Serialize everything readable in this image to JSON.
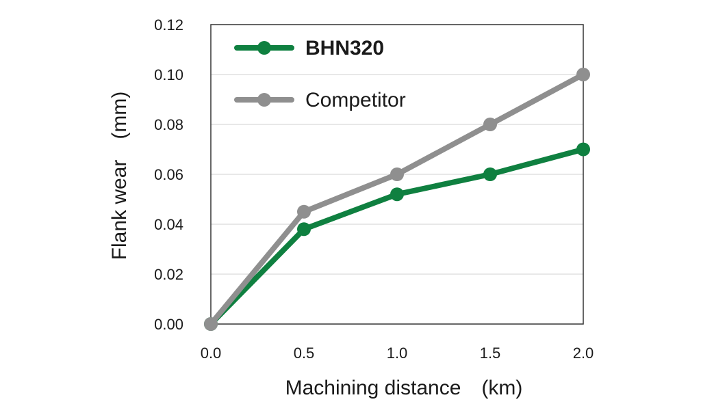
{
  "chart_data": {
    "type": "line",
    "xlabel": "Machining distance　(km)",
    "ylabel": "Flank wear　(mm)",
    "x": [
      0.0,
      0.5,
      1.0,
      1.5,
      2.0
    ],
    "x_tick_labels": [
      "0.0",
      "0.5",
      "1.0",
      "1.5",
      "2.0"
    ],
    "xlim": [
      0.0,
      2.0
    ],
    "ylim": [
      0.0,
      0.12
    ],
    "y_ticks": [
      0.0,
      0.02,
      0.04,
      0.06,
      0.08,
      0.1,
      0.12
    ],
    "y_tick_labels": [
      "0.00",
      "0.02",
      "0.04",
      "0.06",
      "0.08",
      "0.10",
      "0.12"
    ],
    "grid": true,
    "legend_position": "top-left",
    "series": [
      {
        "name": "BHN320",
        "color": "#0f8040",
        "bold": true,
        "values": [
          0.0,
          0.038,
          0.052,
          0.06,
          0.07
        ]
      },
      {
        "name": "Competitor",
        "color": "#8f8f8f",
        "bold": false,
        "values": [
          0.0,
          0.045,
          0.06,
          0.08,
          0.1
        ]
      }
    ]
  }
}
